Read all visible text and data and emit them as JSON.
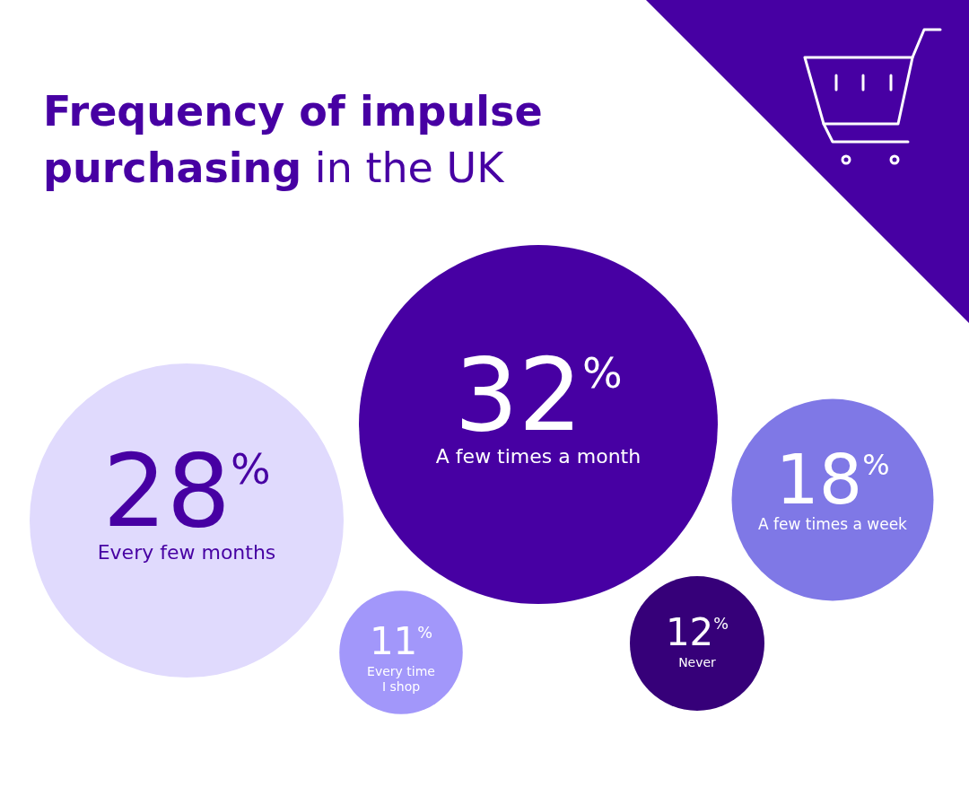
{
  "chart_data": {
    "type": "other",
    "title": "Frequency of impulse purchasing in the UK",
    "categories": [
      "Every few months",
      "A few times a month",
      "A few times a week",
      "Every time I shop",
      "Never"
    ],
    "values": [
      28,
      32,
      18,
      11,
      12
    ],
    "value_labels": [
      "28$^{%}$",
      "32$^{%}$",
      "18$^{%}$",
      "11$^{%}$",
      "12$^{%}$"
    ],
    "colors": [
      "#e0dafd",
      "#4700a3",
      "#7f78e6",
      "#a297fa",
      "#360079"
    ]
  }
}
